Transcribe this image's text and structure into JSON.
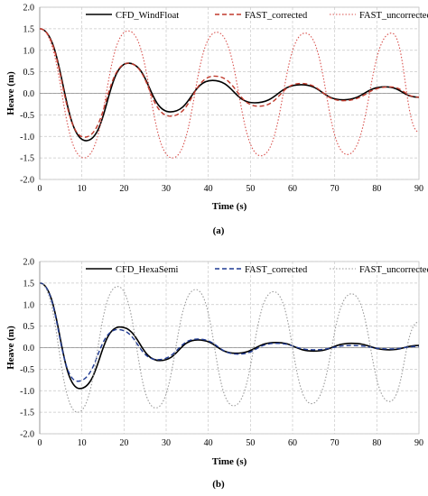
{
  "chart_data": [
    {
      "type": "line",
      "caption": "(a)",
      "xlabel": "Time (s)",
      "ylabel": "Heave (m)",
      "xlim": [
        0,
        90
      ],
      "ylim": [
        -2.0,
        2.0
      ],
      "xticks": [
        "0",
        "10",
        "20",
        "30",
        "40",
        "50",
        "60",
        "70",
        "80",
        "90"
      ],
      "yticks": [
        "2.0",
        "1.5",
        "1.0",
        "0.5",
        "0.0",
        "-0.5",
        "-1.0",
        "-1.5",
        "-2.0"
      ],
      "grid": true,
      "legend_position": "top",
      "series": [
        {
          "name": "CFD_WindFloat",
          "color": "#000000",
          "style": "solid",
          "points": [
            [
              0,
              1.5
            ],
            [
              11,
              -1.1
            ],
            [
              21,
              0.7
            ],
            [
              31,
              -0.43
            ],
            [
              41,
              0.3
            ],
            [
              51,
              -0.22
            ],
            [
              62,
              0.2
            ],
            [
              72,
              -0.15
            ],
            [
              82,
              0.15
            ],
            [
              90,
              -0.09
            ]
          ]
        },
        {
          "name": "FAST_corrected",
          "color": "#c0392b",
          "style": "dashed",
          "points": [
            [
              0,
              1.5
            ],
            [
              10.6,
              -1.02
            ],
            [
              21,
              0.7
            ],
            [
              31,
              -0.53
            ],
            [
              41.5,
              0.4
            ],
            [
              52,
              -0.3
            ],
            [
              62,
              0.23
            ],
            [
              72,
              -0.17
            ],
            [
              83,
              0.15
            ],
            [
              90,
              -0.09
            ]
          ]
        },
        {
          "name": "FAST_uncorrected",
          "color": "#d9534f",
          "style": "dotted",
          "points": [
            [
              0,
              1.5
            ],
            [
              10.5,
              -1.5
            ],
            [
              21,
              1.45
            ],
            [
              31.5,
              -1.5
            ],
            [
              42,
              1.42
            ],
            [
              52.5,
              -1.45
            ],
            [
              63,
              1.4
            ],
            [
              73,
              -1.42
            ],
            [
              83.5,
              1.4
            ],
            [
              90,
              -0.9
            ]
          ]
        }
      ]
    },
    {
      "type": "line",
      "caption": "(b)",
      "xlabel": "Time (s)",
      "ylabel": "Heave (m)",
      "xlim": [
        0,
        90
      ],
      "ylim": [
        -2.0,
        2.0
      ],
      "xticks": [
        "0",
        "10",
        "20",
        "30",
        "40",
        "50",
        "60",
        "70",
        "80",
        "90"
      ],
      "yticks": [
        "2.0",
        "1.5",
        "1.0",
        "0.5",
        "0.0",
        "-0.5",
        "-1.0",
        "-1.5",
        "-2.0"
      ],
      "grid": true,
      "legend_position": "top",
      "series": [
        {
          "name": "CFD_HexaSemi",
          "color": "#000000",
          "style": "solid",
          "points": [
            [
              0,
              1.5
            ],
            [
              9.5,
              -0.95
            ],
            [
              19,
              0.48
            ],
            [
              28.5,
              -0.3
            ],
            [
              37.5,
              0.18
            ],
            [
              46.5,
              -0.13
            ],
            [
              56,
              0.12
            ],
            [
              65,
              -0.08
            ],
            [
              74,
              0.1
            ],
            [
              83,
              -0.05
            ],
            [
              90,
              0.05
            ]
          ]
        },
        {
          "name": "FAST_corrected",
          "color": "#1f3a93",
          "style": "dashed",
          "points": [
            [
              0,
              1.5
            ],
            [
              9,
              -0.78
            ],
            [
              18.5,
              0.42
            ],
            [
              28,
              -0.28
            ],
            [
              37.5,
              0.2
            ],
            [
              47,
              -0.15
            ],
            [
              56,
              0.1
            ],
            [
              65,
              -0.05
            ],
            [
              74,
              0.05
            ],
            [
              83,
              -0.03
            ],
            [
              90,
              0.03
            ]
          ]
        },
        {
          "name": "FAST_uncorrected",
          "color": "#9a9a9a",
          "style": "dotted",
          "points": [
            [
              0,
              1.5
            ],
            [
              9,
              -1.5
            ],
            [
              18.5,
              1.42
            ],
            [
              27.5,
              -1.4
            ],
            [
              37,
              1.35
            ],
            [
              46,
              -1.35
            ],
            [
              55.5,
              1.3
            ],
            [
              64.5,
              -1.3
            ],
            [
              74,
              1.25
            ],
            [
              83,
              -1.25
            ],
            [
              90,
              0.6
            ]
          ]
        }
      ]
    }
  ]
}
